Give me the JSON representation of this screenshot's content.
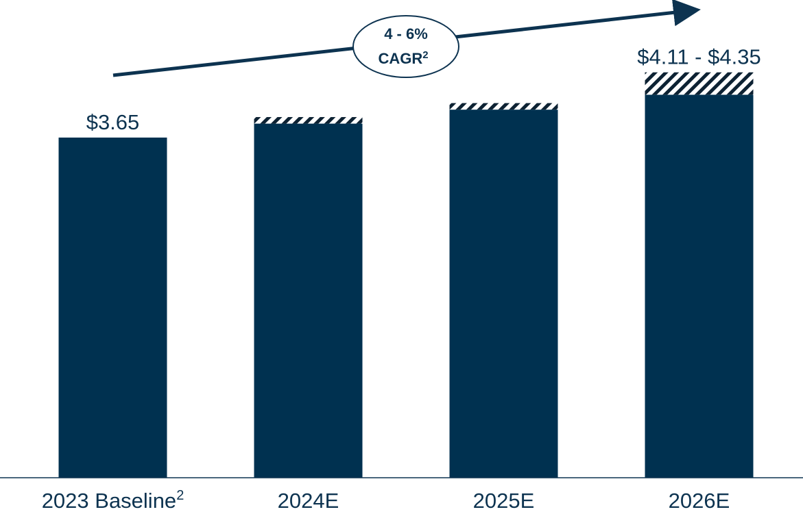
{
  "chart_data": {
    "type": "bar",
    "categories": [
      "2023 Baseline",
      "2024E",
      "2025E",
      "2026E"
    ],
    "category_superscripts": [
      "2",
      "",
      "",
      ""
    ],
    "series": [
      {
        "values": [
          3.65,
          3.8,
          3.95,
          4.11
        ]
      },
      {
        "values": [
          0,
          0.07,
          0.07,
          0.24
        ]
      }
    ],
    "bar_color": "#003150",
    "range_fill": "diagonal-hatch",
    "data_labels": [
      "$3.65",
      "",
      "",
      "$4.11 - $4.35"
    ],
    "annotation": {
      "line1": "4 - 6%",
      "line2": "CAGR",
      "superscript": "2",
      "arrow": "upward trend arrow"
    },
    "ylim": [
      0,
      4.5
    ],
    "grid": false,
    "legend": "none"
  }
}
